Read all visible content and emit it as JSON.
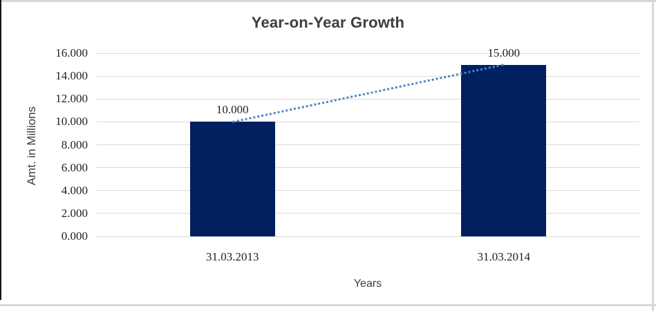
{
  "chart_data": {
    "type": "bar",
    "title": "Year-on-Year Growth",
    "xlabel": "Years",
    "ylabel": "Amt. in Millions",
    "categories": [
      "31.03.2013",
      "31.03.2014"
    ],
    "values": [
      10,
      15
    ],
    "data_labels": [
      "10.000",
      "15.000"
    ],
    "ytick_labels": [
      "0.000",
      "2.000",
      "4.000",
      "6.000",
      "8.000",
      "10.000",
      "12.000",
      "14.000",
      "16.000"
    ],
    "ylim": [
      0,
      16
    ],
    "ytick_step": 2,
    "grid": true,
    "legend": "none",
    "trendline": {
      "type": "linear",
      "style": "dotted",
      "color": "#4a86c8"
    },
    "colors": {
      "bar": "#002060",
      "gridline": "#d9d9d9",
      "title": "#3d3d3d",
      "axis_title": "#3d3d3d",
      "tick_label": "#1f1f1f"
    }
  }
}
